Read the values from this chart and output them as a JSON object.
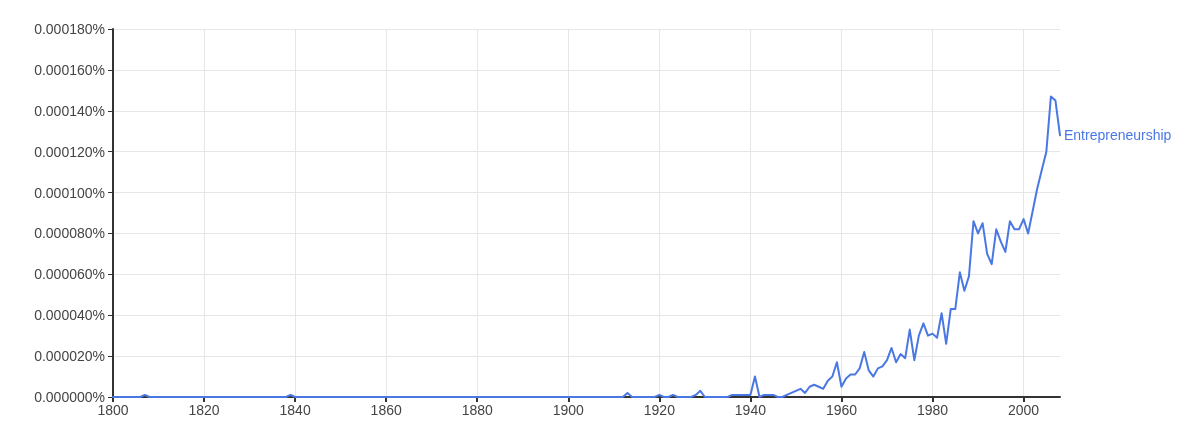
{
  "chart_data": {
    "type": "line",
    "x": [
      1800,
      1806,
      1807,
      1808,
      1838,
      1839,
      1840,
      1912,
      1913,
      1914,
      1915,
      1916,
      1917,
      1918,
      1919,
      1920,
      1921,
      1922,
      1923,
      1924,
      1925,
      1926,
      1927,
      1928,
      1929,
      1930,
      1931,
      1932,
      1933,
      1934,
      1935,
      1936,
      1937,
      1938,
      1939,
      1940,
      1941,
      1942,
      1943,
      1944,
      1945,
      1946,
      1947,
      1948,
      1949,
      1950,
      1951,
      1952,
      1953,
      1954,
      1955,
      1956,
      1957,
      1958,
      1959,
      1960,
      1961,
      1962,
      1963,
      1964,
      1965,
      1966,
      1967,
      1968,
      1969,
      1970,
      1971,
      1972,
      1973,
      1974,
      1975,
      1976,
      1977,
      1978,
      1979,
      1980,
      1981,
      1982,
      1983,
      1984,
      1985,
      1986,
      1987,
      1988,
      1989,
      1990,
      1991,
      1992,
      1993,
      1994,
      1995,
      1996,
      1997,
      1998,
      1999,
      2000,
      2001,
      2002,
      2003,
      2004,
      2005,
      2006,
      2007,
      2008
    ],
    "series": [
      {
        "name": "Entrepreneurship",
        "color": "#4a78e3",
        "values": [
          0,
          0,
          1e-06,
          0,
          0,
          1e-06,
          0,
          0,
          2e-06,
          0,
          0,
          0,
          0,
          0,
          0,
          1e-06,
          0,
          0,
          1e-06,
          0,
          0,
          0,
          0,
          1e-06,
          3e-06,
          0,
          0,
          0,
          0,
          0,
          0,
          1e-06,
          1e-06,
          1e-06,
          1e-06,
          1e-06,
          1e-05,
          0,
          1e-06,
          1e-06,
          1e-06,
          0,
          0,
          1e-06,
          2e-06,
          3e-06,
          4e-06,
          2e-06,
          5e-06,
          6e-06,
          5e-06,
          4e-06,
          8e-06,
          1e-05,
          1.7e-05,
          5e-06,
          9e-06,
          1.1e-05,
          1.1e-05,
          1.4e-05,
          2.2e-05,
          1.3e-05,
          1e-05,
          1.4e-05,
          1.5e-05,
          1.8e-05,
          2.4e-05,
          1.7e-05,
          2.1e-05,
          1.9e-05,
          3.3e-05,
          1.8e-05,
          3e-05,
          3.6e-05,
          3e-05,
          3.1e-05,
          2.9e-05,
          4.1e-05,
          2.6e-05,
          4.3e-05,
          4.3e-05,
          6.1e-05,
          5.2e-05,
          5.9e-05,
          8.6e-05,
          8e-05,
          8.5e-05,
          7e-05,
          6.5e-05,
          8.2e-05,
          7.6e-05,
          7.1e-05,
          8.6e-05,
          8.2e-05,
          8.2e-05,
          8.7e-05,
          8e-05,
          9.1e-05,
          0.000102,
          0.000111,
          0.00012,
          0.000147,
          0.000145,
          0.000128
        ]
      }
    ],
    "xlim": [
      1800,
      2008
    ],
    "xticks": [
      1800,
      1820,
      1840,
      1860,
      1880,
      1900,
      1920,
      1940,
      1960,
      1980,
      2000
    ],
    "ylim": [
      0,
      0.00018
    ],
    "yticks": [
      {
        "value": 0,
        "label": "0.000000%"
      },
      {
        "value": 2e-05,
        "label": "0.000020%"
      },
      {
        "value": 4e-05,
        "label": "0.000040%"
      },
      {
        "value": 6e-05,
        "label": "0.000060%"
      },
      {
        "value": 8e-05,
        "label": "0.000080%"
      },
      {
        "value": 0.0001,
        "label": "0.000100%"
      },
      {
        "value": 0.00012,
        "label": "0.000120%"
      },
      {
        "value": 0.00014,
        "label": "0.000140%"
      },
      {
        "value": 0.00016,
        "label": "0.000160%"
      },
      {
        "value": 0.00018,
        "label": "0.000180%"
      }
    ],
    "grid": true
  }
}
